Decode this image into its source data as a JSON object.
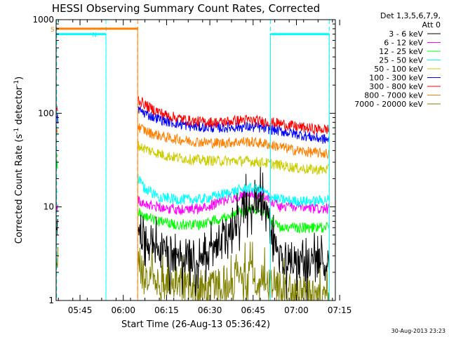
{
  "chart_data": {
    "type": "line",
    "title": "HESSI Observing Summary Count Rates, Corrected",
    "xlabel": "Start Time (26-Aug-13 05:36:42)",
    "ylabel": "Corrected Count Rate (s",
    "ylabel_sup": "-1",
    "ylabel_mid": " detector",
    "ylabel_sup2": "-1",
    "ylabel_end": ")",
    "yscale": "log",
    "ylim": [
      1,
      1000
    ],
    "xlim": [
      5.612,
      7.225
    ],
    "x_ticks": [
      {
        "label": "05:45",
        "value": 5.75
      },
      {
        "label": "06:00",
        "value": 6.0
      },
      {
        "label": "06:15",
        "value": 6.25
      },
      {
        "label": "06:30",
        "value": 6.5
      },
      {
        "label": "06:45",
        "value": 6.75
      },
      {
        "label": "07:00",
        "value": 7.0
      },
      {
        "label": "07:15",
        "value": 7.25
      }
    ],
    "y_ticks": [
      {
        "label": "1",
        "value": 1
      },
      {
        "label": "10",
        "value": 10
      },
      {
        "label": "100",
        "value": 100
      },
      {
        "label": "1000",
        "value": 1000
      }
    ],
    "legend_header": [
      "Det 1,3,5,6,7,9,",
      "Att 0"
    ],
    "legend_position": "right",
    "date_stamp": "30-Aug-2013 23:23",
    "flags": [
      {
        "label": "S",
        "color": "#ff8000",
        "y": 800,
        "segments": [
          [
            5.612,
            6.083
          ]
        ]
      },
      {
        "label": "N",
        "color": "#00ffff",
        "y": 700,
        "segments": [
          [
            5.612,
            5.9
          ],
          [
            6.85,
            7.19
          ]
        ]
      }
    ],
    "vlines": [
      {
        "x": 5.615,
        "color": "#00ffff"
      },
      {
        "x": 5.9,
        "color": "#00ffff"
      },
      {
        "x": 6.083,
        "color": "#ff8000"
      },
      {
        "x": 6.85,
        "color": "#00ffff"
      },
      {
        "x": 7.19,
        "color": "#00ffff"
      }
    ],
    "data_windows": [
      [
        5.612,
        5.622
      ],
      [
        6.085,
        7.19
      ]
    ],
    "series": [
      {
        "name": "3 - 6 keV",
        "color": "#000000",
        "x": [
          5.612,
          5.618,
          5.622,
          6.085,
          6.12,
          6.2,
          6.3,
          6.45,
          6.6,
          6.68,
          6.72,
          6.76,
          6.8,
          6.84,
          6.86,
          6.9,
          7.0,
          7.1,
          7.19
        ],
        "y": [
          5,
          6,
          6,
          6,
          5,
          3.5,
          3,
          2.8,
          5,
          9,
          12,
          13,
          11,
          7,
          4,
          3,
          2.6,
          2.4,
          2.4
        ]
      },
      {
        "name": "6 - 12 keV",
        "color": "#ff00ff",
        "x": [
          5.612,
          5.618,
          5.622,
          6.085,
          6.12,
          6.2,
          6.3,
          6.45,
          6.6,
          6.72,
          6.8,
          6.85,
          6.9,
          7.0,
          7.1,
          7.19
        ],
        "y": [
          9,
          10,
          10,
          12,
          11,
          10,
          9.5,
          9.5,
          12,
          14,
          14,
          12,
          10,
          10,
          9.5,
          9.5
        ]
      },
      {
        "name": "12 - 25 keV",
        "color": "#00ff00",
        "x": [
          5.612,
          5.618,
          5.622,
          6.085,
          6.12,
          6.2,
          6.3,
          6.45,
          6.6,
          6.75,
          6.82,
          6.86,
          6.9,
          7.0,
          7.1,
          7.19
        ],
        "y": [
          25,
          30,
          28,
          9,
          8,
          7,
          6.5,
          6.5,
          8,
          9.5,
          9,
          7,
          6,
          6,
          6,
          6
        ]
      },
      {
        "name": "25 - 50 keV",
        "color": "#00ffff",
        "x": [
          5.612,
          5.618,
          5.622,
          6.085,
          6.12,
          6.2,
          6.3,
          6.45,
          6.6,
          6.72,
          6.8,
          6.85,
          6.9,
          7.0,
          7.1,
          7.19
        ],
        "y": [
          14,
          16,
          15,
          20,
          16,
          13,
          12,
          12,
          14,
          16,
          15,
          13,
          12,
          11.5,
          11.5,
          12
        ]
      },
      {
        "name": "50 - 100 keV",
        "color": "#cccc00",
        "x": [
          5.612,
          5.618,
          5.622,
          6.085,
          6.15,
          6.25,
          6.4,
          6.55,
          6.7,
          6.8,
          6.9,
          7.0,
          7.1,
          7.19
        ],
        "y": [
          30,
          40,
          35,
          45,
          40,
          35,
          32,
          31,
          31,
          30,
          28,
          26,
          25,
          25
        ]
      },
      {
        "name": "100 - 300 keV",
        "color": "#0000ff",
        "x": [
          5.612,
          5.618,
          5.622,
          6.085,
          6.15,
          6.25,
          6.4,
          6.55,
          6.7,
          6.8,
          6.9,
          7.0,
          7.1,
          7.19
        ],
        "y": [
          80,
          90,
          85,
          110,
          95,
          82,
          72,
          70,
          72,
          70,
          65,
          60,
          55,
          52
        ]
      },
      {
        "name": "300 - 800 keV",
        "color": "#ff0000",
        "x": [
          5.612,
          5.618,
          5.622,
          6.085,
          6.15,
          6.25,
          6.4,
          6.55,
          6.7,
          6.8,
          6.9,
          7.0,
          7.1,
          7.19
        ],
        "y": [
          100,
          120,
          110,
          140,
          115,
          95,
          82,
          80,
          85,
          82,
          78,
          72,
          68,
          67
        ]
      },
      {
        "name": "800 - 7000 keV",
        "color": "#ff8000",
        "x": [
          5.612,
          5.618,
          5.622,
          6.085,
          6.15,
          6.25,
          6.4,
          6.55,
          6.7,
          6.8,
          6.9,
          7.0,
          7.1,
          7.19
        ],
        "y": [
          60,
          70,
          65,
          72,
          62,
          55,
          50,
          48,
          50,
          48,
          44,
          40,
          38,
          37
        ]
      },
      {
        "name": "7000 - 20000 keV",
        "color": "#808000",
        "x": [
          5.612,
          5.618,
          5.622,
          6.085,
          6.12,
          6.2,
          6.3,
          6.45,
          6.6,
          6.7,
          6.8,
          6.9,
          7.0,
          7.19
        ],
        "y": [
          2.5,
          3,
          2.5,
          2.8,
          1.8,
          1.6,
          1.5,
          1.3,
          1.6,
          1.8,
          1.7,
          1.4,
          1.2,
          1.0
        ]
      }
    ]
  }
}
